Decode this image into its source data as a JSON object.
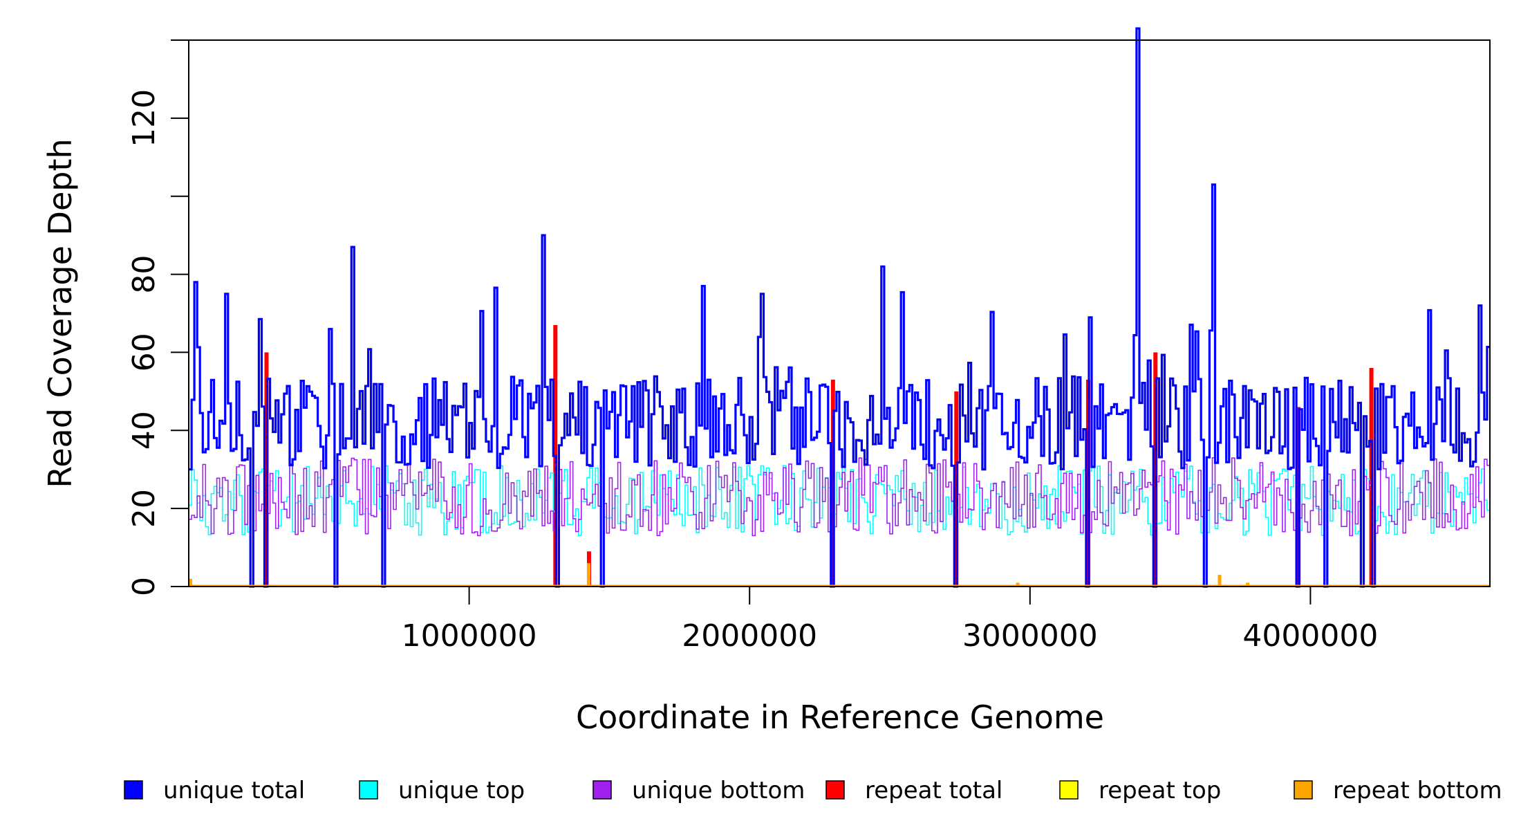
{
  "chart_data": {
    "type": "line",
    "xlabel": "Coordinate in Reference Genome",
    "ylabel": "Read Coverage Depth",
    "xlim": [
      0,
      4640000
    ],
    "ylim": [
      0,
      140
    ],
    "x_ticks": [
      1000000,
      2000000,
      3000000,
      4000000
    ],
    "x_tick_labels": [
      "1000000",
      "2000000",
      "3000000",
      "4000000"
    ],
    "y_ticks": [
      0,
      20,
      40,
      60,
      80,
      100,
      120,
      140
    ],
    "y_tick_labels": [
      "0",
      "20",
      "40",
      "60",
      "80",
      "",
      "120",
      ""
    ],
    "bin_size": 10000,
    "legend_position": "bottom",
    "series": [
      {
        "name": "unique total",
        "color": "#0000ff"
      },
      {
        "name": "unique top",
        "color": "#00ffff"
      },
      {
        "name": "unique bottom",
        "color": "#a020f0"
      },
      {
        "name": "repeat total",
        "color": "#ff0000"
      },
      {
        "name": "repeat top",
        "color": "#ffff00"
      },
      {
        "name": "repeat bottom",
        "color": "#ffa500"
      }
    ],
    "unique_total_spikes": [
      {
        "x": 130000,
        "y": 75
      },
      {
        "x": 580000,
        "y": 87
      },
      {
        "x": 1260000,
        "y": 90
      },
      {
        "x": 1830000,
        "y": 77
      },
      {
        "x": 2040000,
        "y": 75
      },
      {
        "x": 2470000,
        "y": 82
      },
      {
        "x": 3380000,
        "y": 143
      },
      {
        "x": 3650000,
        "y": 103
      },
      {
        "x": 4600000,
        "y": 72
      }
    ],
    "unique_total_dropouts": [
      220000,
      270000,
      520000,
      690000,
      1310000,
      1470000,
      2290000,
      2730000,
      3200000,
      3440000,
      3620000,
      3950000,
      4050000,
      4180000,
      4220000
    ],
    "repeat_total_peaks": [
      {
        "x": 270000,
        "y": 60
      },
      {
        "x": 1300000,
        "y": 67
      },
      {
        "x": 1420000,
        "y": 9
      },
      {
        "x": 2290000,
        "y": 53
      },
      {
        "x": 2730000,
        "y": 50
      },
      {
        "x": 3440000,
        "y": 60
      },
      {
        "x": 3950000,
        "y": 46
      },
      {
        "x": 4210000,
        "y": 56
      },
      {
        "x": 3200000,
        "y": 53
      }
    ],
    "repeat_bottom_peaks": [
      {
        "x": 5000,
        "y": 2
      },
      {
        "x": 1420000,
        "y": 6
      },
      {
        "x": 2950000,
        "y": 1
      },
      {
        "x": 3670000,
        "y": 3
      },
      {
        "x": 3770000,
        "y": 1
      }
    ],
    "baseline": {
      "unique_total": 42,
      "unique_top": 22,
      "unique_bottom": 23
    }
  }
}
